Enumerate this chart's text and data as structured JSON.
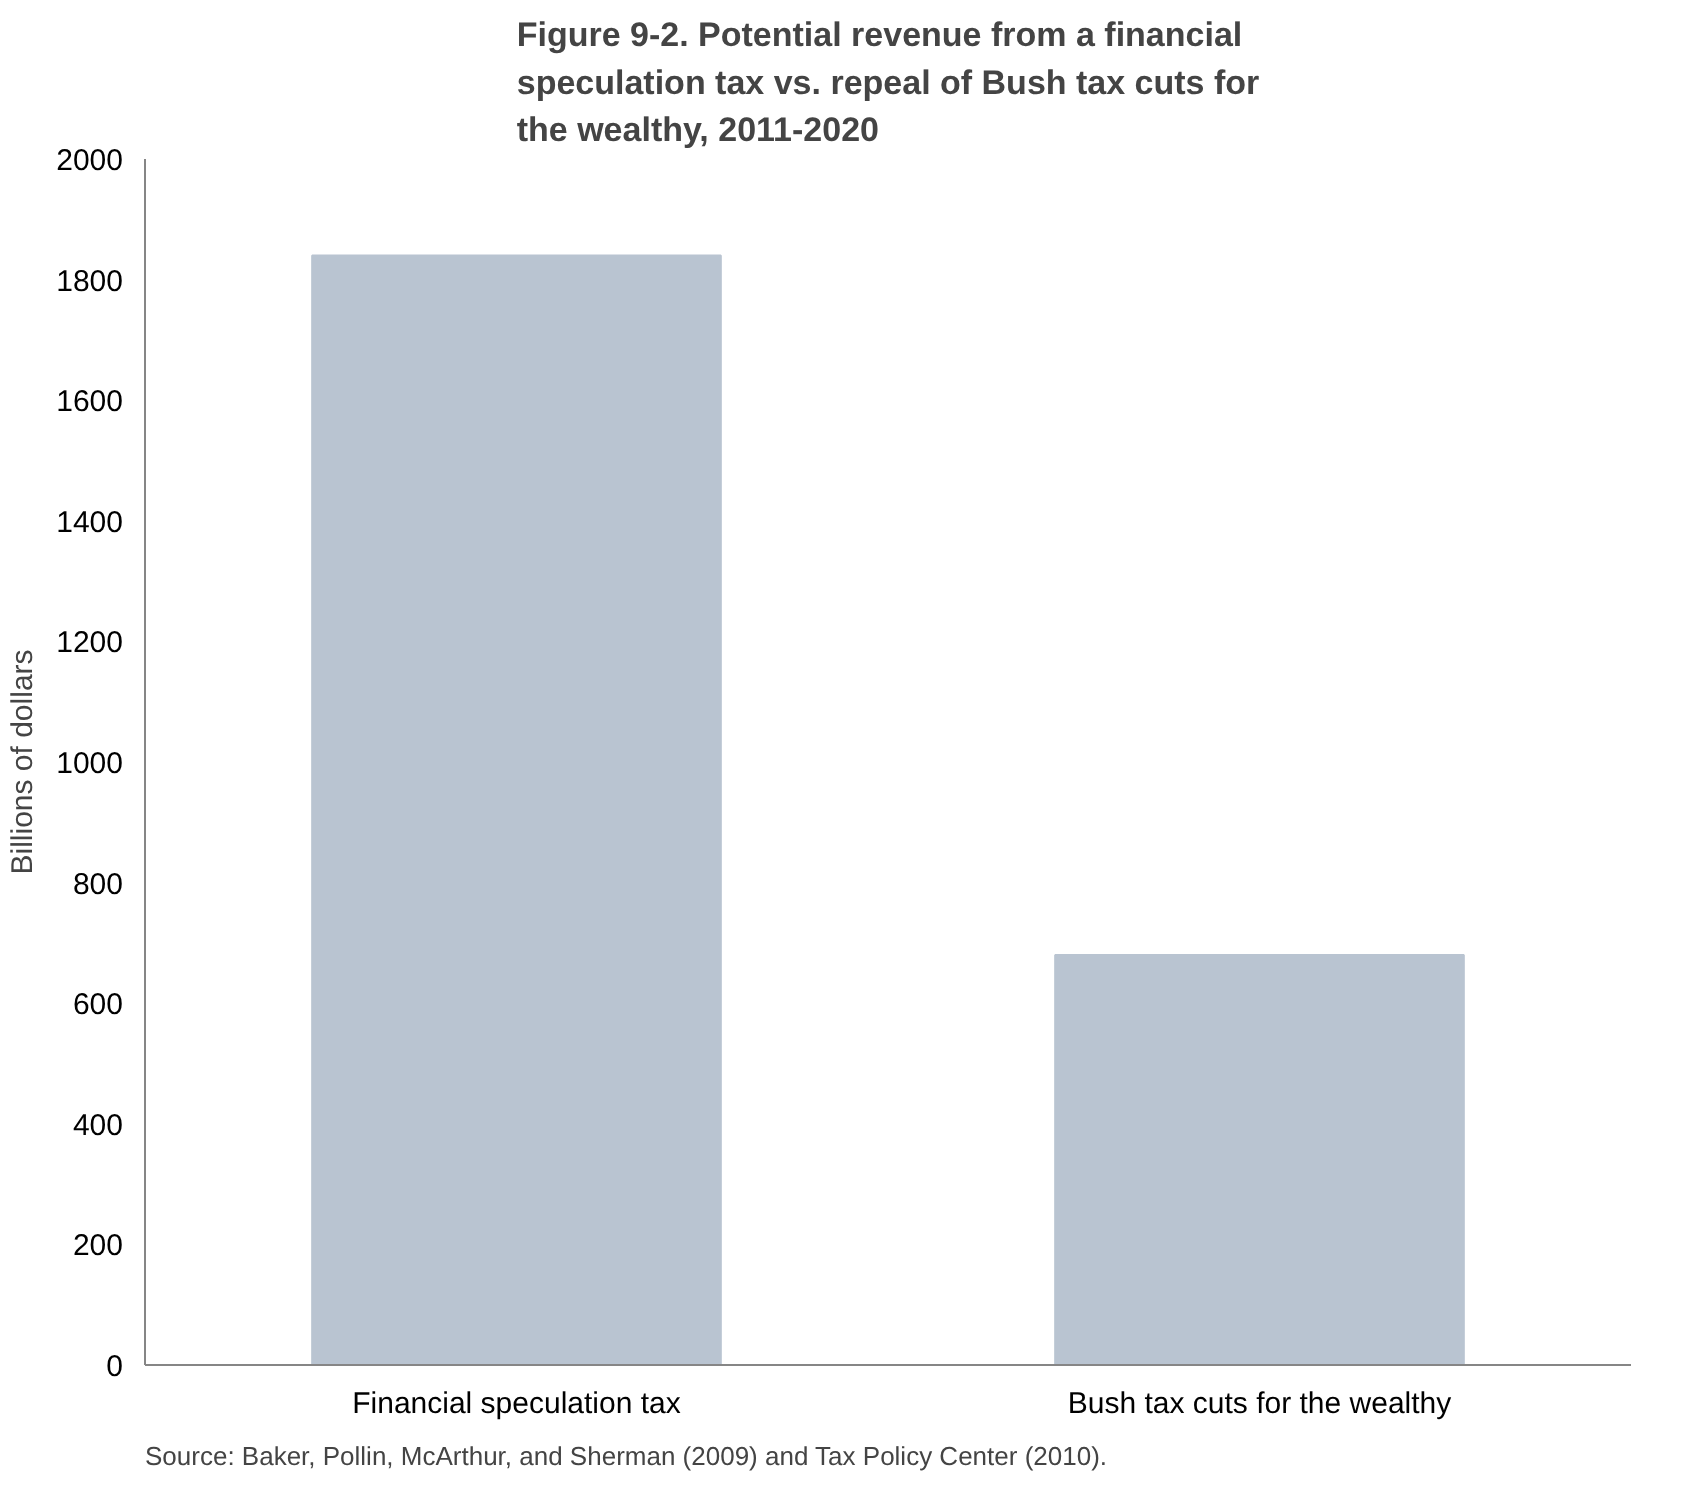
{
  "chart_data": {
    "type": "bar",
    "title": "Figure 9-2. Potential revenue from a financial speculation tax vs. repeal of Bush tax cuts for the wealthy, 2011-2020",
    "categories": [
      "Financial speculation tax",
      "Bush tax cuts for the wealthy"
    ],
    "values": [
      1840,
      680
    ],
    "color": "#b9c4d1",
    "ylabel": "Billions of dollars",
    "ylim": [
      0,
      2000
    ],
    "yticks": [
      0,
      200,
      400,
      600,
      800,
      1000,
      1200,
      1400,
      1600,
      1800,
      2000
    ],
    "grid": false,
    "annotations": [
      "Source: Baker, Pollin, McArthur, and Sherman (2009) and Tax Policy Center (2010)."
    ]
  }
}
